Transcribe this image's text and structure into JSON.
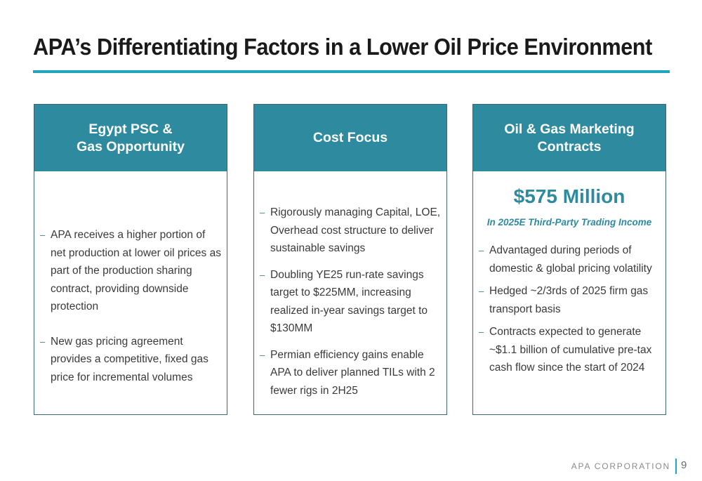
{
  "title": "APA’s Differentiating Factors in a Lower Oil Price Environment",
  "colors": {
    "accent": "#1fa6b8",
    "header": "#2e8a9e",
    "border": "#3f6675"
  },
  "cards": [
    {
      "header": "Egypt PSC &\nGas Opportunity",
      "bullets": [
        "APA receives a higher portion of net production at lower oil prices as part of the production sharing contract, providing downside protection",
        "New gas pricing agreement provides a competitive, fixed gas price for incremental volumes"
      ]
    },
    {
      "header": "Cost Focus",
      "bullets": [
        "Rigorously managing Capital, LOE, Overhead cost structure to deliver sustainable savings",
        "Doubling YE25 run-rate savings target to $225MM, increasing realized in-year savings target to $130MM",
        "Permian efficiency gains enable APA to deliver planned TILs with 2 fewer rigs in 2H25"
      ]
    },
    {
      "header": "Oil & Gas Marketing\nContracts",
      "highlight": "$575 Million",
      "highlight_caption": "In 2025E Third-Party Trading Income",
      "bullets": [
        "Advantaged during periods of domestic & global pricing volatility",
        "Hedged ~2/3rds of 2025 firm gas transport basis",
        "Contracts expected to generate ~$1.1 billion of cumulative pre-tax cash flow since the start of 2024"
      ]
    }
  ],
  "bullet_marker": "–",
  "footer": {
    "brand": "APA CORPORATION",
    "page": "9"
  }
}
